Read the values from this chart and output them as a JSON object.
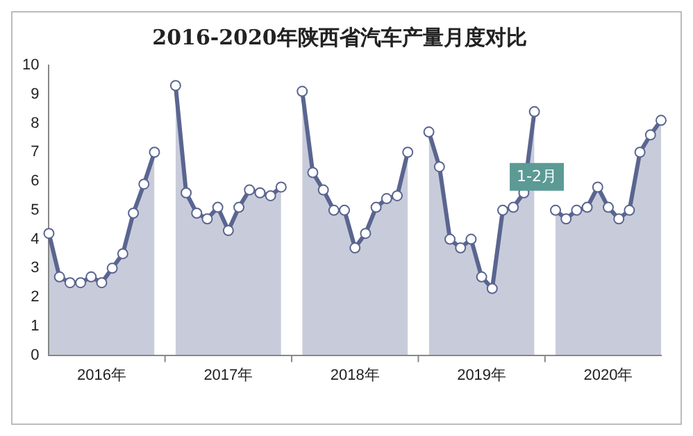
{
  "chart_data": {
    "type": "area",
    "title": "2016-2020年陕西省汽车产量月度对比",
    "categories": [
      null,
      null,
      null,
      null,
      null,
      "2016年",
      null,
      null,
      null,
      null,
      null,
      null,
      null,
      null,
      null,
      null,
      null,
      "2017年",
      null,
      null,
      null,
      null,
      null,
      null,
      null,
      null,
      null,
      null,
      null,
      "2018年",
      null,
      null,
      null,
      null,
      null,
      null,
      null,
      null,
      null,
      null,
      null,
      "2019年",
      null,
      null,
      null,
      null,
      null,
      null,
      null,
      null,
      null,
      null,
      null,
      "2020年",
      null,
      null,
      null,
      null,
      null
    ],
    "series": [
      {
        "color": "#5a6590",
        "values": [
          4.2,
          2.7,
          2.5,
          2.5,
          2.7,
          2.5,
          3.0,
          3.5,
          4.9,
          5.9,
          7.0,
          null,
          9.3,
          5.6,
          4.9,
          4.7,
          5.1,
          4.3,
          5.1,
          5.7,
          5.6,
          5.5,
          5.8,
          null,
          9.1,
          6.3,
          5.7,
          5.0,
          5.0,
          3.7,
          4.2,
          5.1,
          5.4,
          5.5,
          7.0,
          null,
          7.7,
          6.5,
          4.0,
          3.7,
          4.0,
          2.7,
          2.3,
          5.0,
          5.1,
          5.6,
          8.4,
          null,
          5.0,
          4.7,
          5.0,
          5.1,
          5.8,
          5.1,
          4.7,
          5.0,
          7.0,
          7.6,
          8.1
        ]
      }
    ],
    "ylim": [
      0,
      10
    ],
    "yticks": [
      0,
      1,
      2,
      3,
      4,
      5,
      6,
      7,
      8,
      9,
      10
    ],
    "marker": "circle",
    "line_style": "solid",
    "grid": false,
    "legend": false,
    "annotations": [
      {
        "text": "1-2月",
        "y": 5.0
      }
    ]
  }
}
